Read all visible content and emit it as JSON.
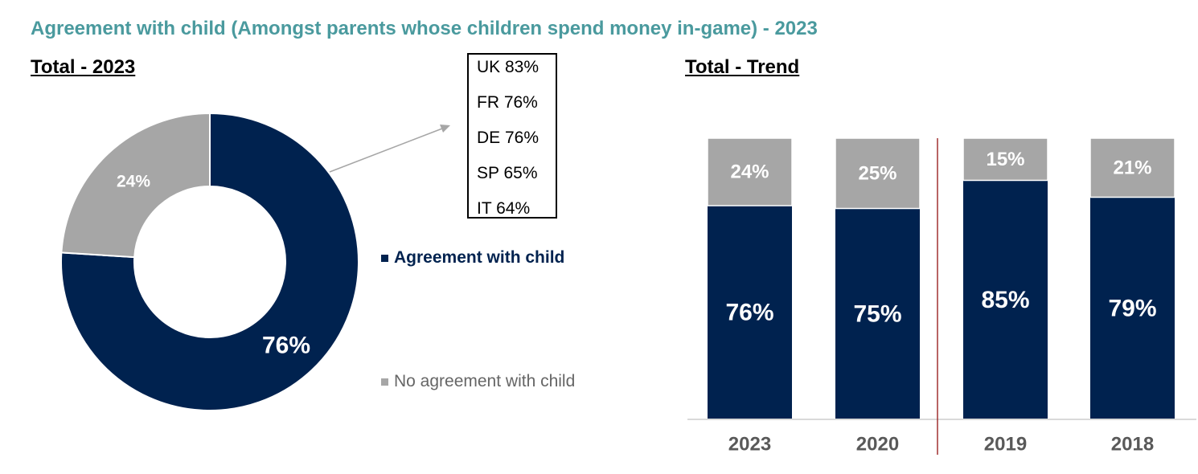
{
  "title": "Agreement with child (Amongst parents whose children spend money in-game) - 2023",
  "colors": {
    "title": "#4a9a9e",
    "agree": "#00224f",
    "no_agree": "#a6a6a6",
    "divider": "#a03030",
    "axis": "#d9d9d9"
  },
  "countries": [
    "UK 83%",
    "FR 76%",
    "DE 76%",
    "SP 65%",
    "IT 64%"
  ],
  "chart_data": [
    {
      "type": "pie",
      "variant": "donut",
      "title": "Total - 2023",
      "slices": [
        {
          "label": "Agreement with child",
          "value": 76,
          "display": "76%"
        },
        {
          "label": "No agreement with child",
          "value": 24,
          "display": "24%"
        }
      ],
      "legend": [
        "Agreement with child",
        "No agreement with child"
      ],
      "legend_position": "right"
    },
    {
      "type": "bar",
      "stacked": true,
      "title": "Total - Trend",
      "categories": [
        "2023",
        "2020",
        "2019",
        "2018"
      ],
      "series": [
        {
          "name": "Agreement with child",
          "values": [
            76,
            75,
            85,
            79
          ],
          "labels": [
            "76%",
            "75%",
            "85%",
            "79%"
          ]
        },
        {
          "name": "No agreement with child",
          "values": [
            24,
            25,
            15,
            21
          ],
          "labels": [
            "24%",
            "25%",
            "15%",
            "21%"
          ]
        }
      ],
      "ylim": [
        0,
        100
      ],
      "grid": false
    }
  ]
}
